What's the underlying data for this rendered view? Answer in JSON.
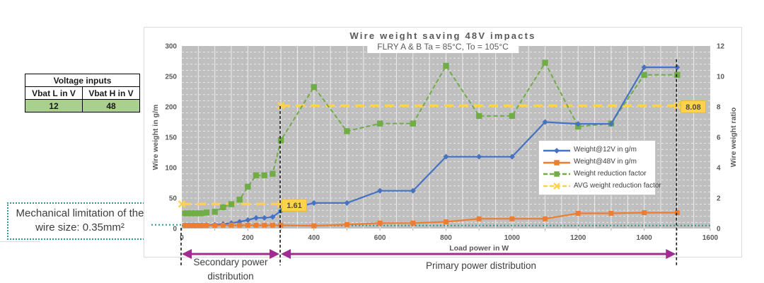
{
  "voltage_table": {
    "title": "Voltage inputs",
    "columns": [
      "Vbat L in V",
      "Vbat H in V"
    ],
    "values": [
      "12",
      "48"
    ],
    "value_bg": "#A9D08E"
  },
  "callout": {
    "text": "Mechanical limitation of the wire size: 0.35mm²",
    "border_color": "#2E9B8F"
  },
  "annotations": {
    "secondary_label": "Secondary power distribution",
    "primary_label": "Primary power distribution",
    "secondary_span_w": [
      0,
      300
    ],
    "primary_span_w": [
      300,
      1500
    ],
    "arrow_color": "#A02B93"
  },
  "chart_data": {
    "type": "line",
    "title": "Wire weight saving 48V impacts",
    "subtitle": "FLRY A & B Ta = 85°C, To = 105°C",
    "xlabel": "Load power in W",
    "plot_bg": "#BFBFBF",
    "x_axis": {
      "lim": [
        0,
        1600
      ],
      "ticks": [
        0,
        200,
        400,
        600,
        800,
        1000,
        1200,
        1400,
        1600
      ]
    },
    "left_axis": {
      "label": "Wire weight in g/m",
      "lim": [
        0,
        300
      ],
      "ticks": [
        0,
        50,
        100,
        150,
        200,
        250,
        300
      ]
    },
    "right_axis": {
      "label": "Wire weight ratio",
      "lim": [
        0,
        12
      ],
      "ticks": [
        0,
        2,
        4,
        6,
        8,
        10,
        12
      ]
    },
    "x": [
      10,
      20,
      30,
      40,
      50,
      60,
      75,
      100,
      125,
      150,
      175,
      200,
      225,
      250,
      275,
      300,
      400,
      500,
      600,
      700,
      800,
      900,
      1000,
      1100,
      1200,
      1300,
      1400,
      1500
    ],
    "series": [
      {
        "name": "Weight@12V in g/m",
        "axis": "left",
        "color": "#4472C4",
        "marker": "diamond",
        "line": "solid",
        "values": [
          5,
          5,
          5,
          5,
          5,
          5,
          5.5,
          6,
          7.5,
          9,
          11,
          14,
          17.5,
          17.5,
          19,
          29,
          42,
          42,
          62,
          62,
          118,
          118,
          118,
          175,
          172,
          172,
          265,
          265
        ]
      },
      {
        "name": "Weight@48V in g/m",
        "axis": "left",
        "color": "#ED7D31",
        "marker": "square",
        "line": "solid",
        "values": [
          5,
          5,
          5,
          5,
          5,
          5,
          5,
          5,
          5.5,
          5.5,
          5.5,
          5.5,
          5.5,
          5.5,
          5.5,
          5.5,
          4.5,
          6.5,
          9,
          9,
          11,
          16,
          16,
          16,
          25,
          25,
          26,
          26
        ]
      },
      {
        "name": "Weight reduction factor",
        "axis": "right",
        "color": "#70AD47",
        "marker": "square",
        "line": "dashed",
        "values": [
          1,
          1,
          1,
          1,
          1,
          1,
          1.05,
          1.1,
          1.4,
          1.6,
          1.9,
          2.75,
          3.5,
          3.5,
          3.6,
          5.8,
          9.3,
          6.4,
          6.9,
          6.9,
          10.7,
          7.4,
          7.4,
          10.9,
          6.7,
          6.9,
          10.1,
          10.1
        ]
      },
      {
        "name": "AVG weight reduction factor",
        "axis": "right",
        "color": "#FFD24C",
        "marker": "x",
        "line": "dashed",
        "segments": [
          {
            "x": [
              0,
              300
            ],
            "value": 1.61,
            "markers": [
              0,
              300
            ],
            "label": "1.61"
          },
          {
            "x": [
              300,
              1600
            ],
            "value": 8.08,
            "markers": [
              300,
              1500
            ],
            "label": "8.08"
          }
        ]
      }
    ],
    "limit_line": {
      "value": 5,
      "color": "#2E9B8F"
    },
    "dashed_boundaries": [
      {
        "x": 0,
        "top_value": 0
      },
      {
        "x": 300,
        "top_value": 200
      },
      {
        "x": 1500,
        "top_value": 277
      }
    ]
  }
}
